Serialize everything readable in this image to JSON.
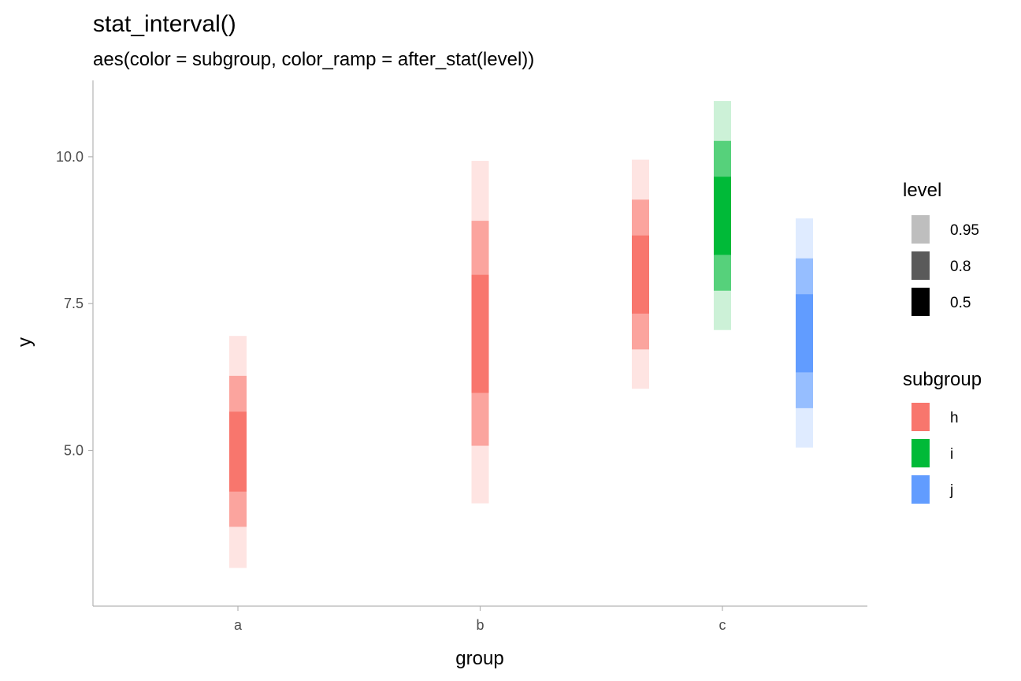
{
  "chart_data": {
    "type": "interval",
    "title": "stat_interval()",
    "subtitle": "aes(color = subgroup, color_ramp = after_stat(level))",
    "xlabel": "group",
    "ylabel": "y",
    "categories": [
      "a",
      "b",
      "c"
    ],
    "ylim": [
      2.35,
      11.3
    ],
    "yticks": [
      5.0,
      7.5,
      10.0
    ],
    "ytick_labels": [
      "5.0",
      "7.5",
      "10.0"
    ],
    "grid": false,
    "levels": [
      0.95,
      0.8,
      0.5
    ],
    "colors": {
      "h": "#F8766D",
      "i": "#00BA38",
      "j": "#619CFF"
    },
    "intervals": [
      {
        "group": "a",
        "subgroup": "h",
        "i95": [
          3.0,
          6.95
        ],
        "i80": [
          3.7,
          6.27
        ],
        "i50": [
          4.3,
          5.66
        ]
      },
      {
        "group": "b",
        "subgroup": "h",
        "i95": [
          4.1,
          9.93
        ],
        "i80": [
          5.08,
          8.91
        ],
        "i50": [
          5.98,
          7.99
        ]
      },
      {
        "group": "c",
        "subgroup": "h",
        "i95": [
          6.05,
          9.95
        ],
        "i80": [
          6.72,
          9.27
        ],
        "i50": [
          7.33,
          8.66
        ]
      },
      {
        "group": "c",
        "subgroup": "i",
        "i95": [
          7.05,
          10.95
        ],
        "i80": [
          7.72,
          10.27
        ],
        "i50": [
          8.33,
          9.66
        ]
      },
      {
        "group": "c",
        "subgroup": "j",
        "i95": [
          5.05,
          8.95
        ],
        "i80": [
          5.72,
          8.27
        ],
        "i50": [
          6.33,
          7.66
        ]
      }
    ]
  },
  "legend": {
    "level_title": "level",
    "level_items": [
      {
        "label": "0.95",
        "color": "#BEBEBE"
      },
      {
        "label": "0.8",
        "color": "#5A5A5A"
      },
      {
        "label": "0.5",
        "color": "#000000"
      }
    ],
    "subgroup_title": "subgroup",
    "subgroup_items": [
      {
        "label": "h",
        "color": "#F8766D"
      },
      {
        "label": "i",
        "color": "#00BA38"
      },
      {
        "label": "j",
        "color": "#619CFF"
      }
    ]
  }
}
